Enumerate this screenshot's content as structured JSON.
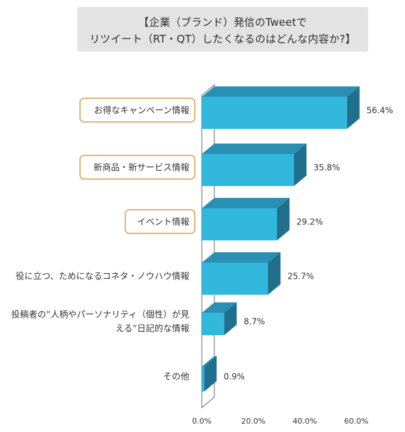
{
  "title": {
    "line1": "【企業（ブランド）発信のTweetで",
    "line2": "リツイート（RT・QT）したくなるのはどんな内容か?】"
  },
  "chart_data": {
    "type": "bar",
    "orientation": "horizontal",
    "style": "3d",
    "title": "【企業（ブランド）発信のTweetで リツイート（RT・QT）したくなるのはどんな内容か?】",
    "categories": [
      [
        "お得なキャンペーン情報"
      ],
      [
        "新商品・新サービス情報"
      ],
      [
        "イベント情報"
      ],
      [
        "役に立つ、ためになるコネタ・ノウハウ情報"
      ],
      [
        "投稿者の”人柄やパーソナリティ（個性）が見",
        "える”日記的な情報"
      ],
      [
        "その他"
      ]
    ],
    "values": [
      56.4,
      35.8,
      29.2,
      25.7,
      8.7,
      0.9
    ],
    "value_labels": [
      "56.4%",
      "35.8%",
      "29.2%",
      "25.7%",
      "8.7%",
      "0.9%"
    ],
    "highlighted": [
      true,
      true,
      true,
      false,
      false,
      false
    ],
    "x_ticks": [
      0,
      20,
      40,
      60
    ],
    "x_tick_labels": [
      "0.0%",
      "20.0%",
      "40.0%",
      "60.0%"
    ],
    "xlim": [
      0,
      60
    ],
    "xlabel": "",
    "ylabel": "",
    "grid": false,
    "colors": {
      "bar_front": "#31b8dc",
      "bar_top": "#2a8fb2",
      "bar_side": "#1f6f8d",
      "highlight_border": "#e09a4a",
      "axis_wall": "#666666",
      "text": "#333333"
    }
  }
}
